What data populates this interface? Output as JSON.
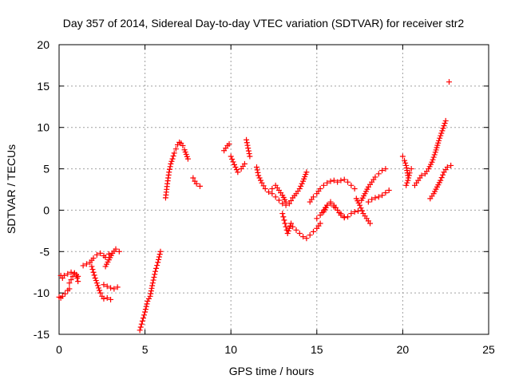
{
  "chart_data": {
    "type": "scatter",
    "title": "Day 357 of 2014, Sidereal Day-to-day VTEC variation (SDTVAR) for receiver str2",
    "xlabel": "GPS time / hours",
    "ylabel": "SDTVAR / TECUs",
    "xlim": [
      0,
      25
    ],
    "ylim": [
      -15,
      20
    ],
    "xticks": [
      "0",
      "5",
      "10",
      "15",
      "20",
      "25"
    ],
    "yticks": [
      "-15",
      "-10",
      "-5",
      "0",
      "5",
      "10",
      "15",
      "20"
    ],
    "grid": true,
    "marker": "plus",
    "color": "#ff0000",
    "series": [
      {
        "x": [
          0.0,
          0.1,
          0.2,
          0.35,
          0.5,
          0.6
        ],
        "y": [
          -10.5,
          -10.6,
          -10.4,
          -10.1,
          -9.7,
          -9.5
        ]
      },
      {
        "x": [
          0.1,
          0.2,
          0.3,
          0.5,
          0.7,
          0.9,
          1.0,
          1.1
        ],
        "y": [
          -7.9,
          -8.2,
          -7.9,
          -7.7,
          -7.5,
          -7.6,
          -7.8,
          -8.0
        ]
      },
      {
        "x": [
          0.6,
          0.7,
          0.8,
          0.9,
          1.0,
          1.1
        ],
        "y": [
          -8.8,
          -8.4,
          -8.0,
          -7.6,
          -7.8,
          -8.6
        ]
      },
      {
        "x": [
          1.4,
          1.6,
          1.8,
          2.0,
          2.2,
          2.4,
          2.6,
          2.7,
          2.9
        ],
        "y": [
          -6.7,
          -6.5,
          -6.3,
          -5.8,
          -5.4,
          -5.2,
          -5.5,
          -5.7,
          -5.3
        ]
      },
      {
        "x": [
          1.9,
          2.0,
          2.1,
          2.2,
          2.3,
          2.4,
          2.5,
          2.6,
          2.8,
          3.0
        ],
        "y": [
          -6.8,
          -7.5,
          -8.2,
          -8.8,
          -9.4,
          -10.0,
          -10.4,
          -10.7,
          -10.6,
          -10.8
        ]
      },
      {
        "x": [
          2.6,
          2.8,
          3.0,
          3.2,
          3.4
        ],
        "y": [
          -9.0,
          -9.2,
          -9.4,
          -9.5,
          -9.3
        ]
      },
      {
        "x": [
          2.7,
          2.9,
          3.1,
          3.3,
          3.5
        ],
        "y": [
          -6.8,
          -6.0,
          -5.2,
          -4.7,
          -5.0
        ]
      },
      {
        "x": [
          4.7,
          4.85,
          5.0,
          5.15,
          5.3,
          5.45,
          5.6,
          5.75,
          5.9
        ],
        "y": [
          -14.5,
          -13.4,
          -12.3,
          -11.0,
          -10.4,
          -8.8,
          -7.4,
          -6.3,
          -5.0
        ]
      },
      {
        "x": [
          6.2,
          6.3,
          6.4,
          6.5,
          6.6,
          6.7,
          6.8,
          6.9,
          7.0,
          7.1,
          7.2,
          7.3,
          7.5
        ],
        "y": [
          1.5,
          3.2,
          4.6,
          5.6,
          6.2,
          6.9,
          7.4,
          7.9,
          8.2,
          8.1,
          7.8,
          7.3,
          6.2
        ]
      },
      {
        "x": [
          7.8,
          7.9,
          8.0,
          8.2
        ],
        "y": [
          3.9,
          3.5,
          3.2,
          2.9
        ]
      },
      {
        "x": [
          9.6,
          9.7,
          9.8,
          9.9
        ],
        "y": [
          7.2,
          7.5,
          7.8,
          8.0
        ]
      },
      {
        "x": [
          10.0,
          10.2,
          10.4,
          10.6,
          10.8
        ],
        "y": [
          6.5,
          5.5,
          4.6,
          5.0,
          5.6
        ]
      },
      {
        "x": [
          10.9,
          11.0,
          11.1
        ],
        "y": [
          8.5,
          7.5,
          6.5
        ]
      },
      {
        "x": [
          11.5,
          11.6,
          11.8,
          12.0,
          12.2,
          12.4,
          12.6,
          12.8,
          13.0,
          13.2
        ],
        "y": [
          5.2,
          4.2,
          3.3,
          2.6,
          2.2,
          2.0,
          1.6,
          1.2,
          0.8,
          0.6
        ]
      },
      {
        "x": [
          12.4,
          12.6,
          12.8,
          13.0,
          13.2,
          13.4,
          13.6,
          13.8,
          14.0,
          14.2,
          14.4
        ],
        "y": [
          2.6,
          3.0,
          2.4,
          1.8,
          1.0,
          0.8,
          1.5,
          2.0,
          2.6,
          3.5,
          4.6
        ]
      },
      {
        "x": [
          13.0,
          13.1,
          13.2,
          13.3,
          13.4,
          13.5
        ],
        "y": [
          -0.4,
          -1.2,
          -2.0,
          -2.8,
          -2.2,
          -1.6
        ]
      },
      {
        "x": [
          13.6,
          13.8,
          14.0,
          14.2,
          14.4,
          14.6,
          14.8,
          15.0,
          15.2
        ],
        "y": [
          -2.0,
          -2.4,
          -2.8,
          -3.2,
          -3.4,
          -3.0,
          -2.6,
          -2.2,
          -1.6
        ]
      },
      {
        "x": [
          15.0,
          15.2,
          15.4,
          15.6,
          15.8,
          16.0,
          16.2,
          16.4,
          16.6
        ],
        "y": [
          -1.0,
          -0.6,
          0.0,
          0.6,
          0.8,
          0.4,
          0.0,
          -0.4,
          -0.8
        ]
      },
      {
        "x": [
          14.6,
          14.8,
          15.0,
          15.2,
          15.4,
          15.6,
          15.8,
          16.0,
          16.2,
          16.4,
          16.6,
          16.8,
          17.0,
          17.2
        ],
        "y": [
          1.0,
          1.6,
          2.0,
          2.6,
          3.0,
          3.3,
          3.5,
          3.6,
          3.4,
          3.6,
          3.7,
          3.4,
          3.0,
          2.6
        ]
      },
      {
        "x": [
          15.4,
          15.6,
          15.8,
          16.0,
          16.2,
          16.4,
          16.6,
          16.8,
          17.0,
          17.2,
          17.4
        ],
        "y": [
          -0.2,
          0.6,
          1.0,
          0.6,
          0.0,
          -0.6,
          -0.9,
          -0.8,
          -0.4,
          -0.2,
          -0.1
        ]
      },
      {
        "x": [
          17.3,
          17.5,
          17.7,
          17.9,
          18.1
        ],
        "y": [
          1.4,
          0.6,
          -0.4,
          -1.0,
          -1.6
        ]
      },
      {
        "x": [
          17.6,
          17.8,
          18.0,
          18.2,
          18.4,
          18.6,
          18.8,
          19.0
        ],
        "y": [
          1.2,
          2.0,
          2.8,
          3.4,
          4.0,
          4.4,
          4.8,
          5.0
        ]
      },
      {
        "x": [
          18.0,
          18.2,
          18.4,
          18.6,
          18.8,
          19.0,
          19.2
        ],
        "y": [
          1.0,
          1.3,
          1.5,
          1.6,
          1.8,
          2.1,
          2.4
        ]
      },
      {
        "x": [
          20.0,
          20.1,
          20.2,
          20.3
        ],
        "y": [
          6.5,
          6.0,
          5.4,
          4.2
        ]
      },
      {
        "x": [
          20.2,
          20.3,
          20.4,
          20.5
        ],
        "y": [
          3.0,
          3.6,
          4.5,
          5.0
        ]
      },
      {
        "x": [
          20.7,
          20.9,
          21.1,
          21.3,
          21.5,
          21.7,
          21.9,
          22.1,
          22.3,
          22.5
        ],
        "y": [
          3.0,
          3.6,
          4.2,
          4.4,
          5.0,
          5.8,
          7.0,
          8.4,
          9.6,
          10.8
        ]
      },
      {
        "x": [
          21.6,
          21.8,
          22.0,
          22.2,
          22.4,
          22.6,
          22.8
        ],
        "y": [
          1.4,
          2.0,
          2.8,
          3.6,
          4.6,
          5.2,
          5.4
        ]
      },
      {
        "x": [
          22.7
        ],
        "y": [
          15.5
        ]
      }
    ]
  }
}
